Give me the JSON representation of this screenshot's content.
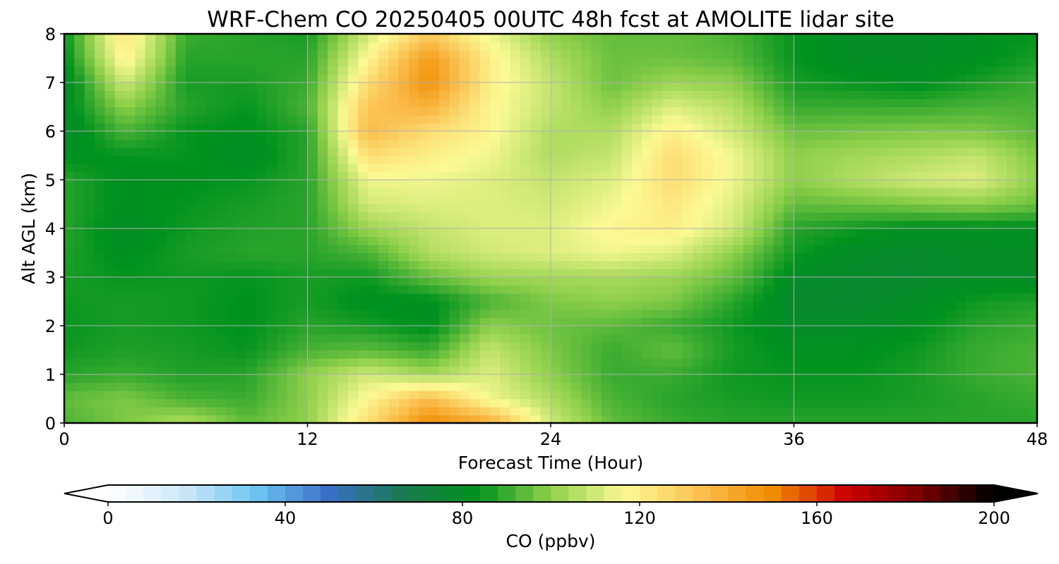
{
  "chart_data": {
    "type": "heatmap",
    "title": "WRF-Chem CO  20250405 00UTC 48h fcst at AMOLITE lidar site",
    "xlabel": "Forecast Time (Hour)",
    "ylabel": "Alt AGL (km)",
    "xlim": [
      0,
      48
    ],
    "ylim": [
      0,
      8
    ],
    "x_ticks": [
      "0",
      "12",
      "24",
      "36",
      "48"
    ],
    "y_ticks": [
      "0",
      "1",
      "2",
      "3",
      "4",
      "5",
      "6",
      "7",
      "8"
    ],
    "grid": true,
    "colorbar": {
      "label": "CO  (ppbv)",
      "range": [
        0,
        200
      ],
      "ticks": [
        "0",
        "40",
        "80",
        "120",
        "160",
        "200"
      ],
      "extend": "both",
      "colors": [
        "#ffffff",
        "#cfe8f8",
        "#6ec5f0",
        "#3a6fc8",
        "#1a7a50",
        "#00921e",
        "#8fd04a",
        "#fcfa94",
        "#fbc050",
        "#f08c00",
        "#cc0000",
        "#7a0000",
        "#000000"
      ]
    },
    "x": [
      0,
      3,
      6,
      9,
      12,
      15,
      18,
      21,
      24,
      27,
      30,
      33,
      36,
      39,
      42,
      45,
      48
    ],
    "y": [
      0,
      0.5,
      1,
      1.5,
      2,
      2.5,
      3,
      3.5,
      4,
      4.5,
      5,
      5.5,
      6,
      6.5,
      7,
      7.5,
      8
    ],
    "values": [
      [
        92,
        98,
        105,
        95,
        100,
        125,
        150,
        140,
        110,
        95,
        90,
        88,
        88,
        88,
        88,
        88,
        88
      ],
      [
        95,
        98,
        92,
        90,
        100,
        118,
        135,
        115,
        105,
        92,
        88,
        86,
        85,
        85,
        86,
        88,
        90
      ],
      [
        88,
        90,
        87,
        88,
        100,
        110,
        103,
        112,
        100,
        90,
        90,
        85,
        84,
        84,
        86,
        90,
        92
      ],
      [
        85,
        87,
        86,
        84,
        92,
        94,
        90,
        108,
        98,
        90,
        95,
        86,
        82,
        82,
        85,
        90,
        92
      ],
      [
        84,
        86,
        85,
        83,
        88,
        86,
        82,
        100,
        96,
        94,
        90,
        85,
        80,
        80,
        82,
        88,
        90
      ],
      [
        85,
        86,
        85,
        83,
        86,
        82,
        82,
        92,
        98,
        100,
        98,
        88,
        78,
        78,
        80,
        85,
        87
      ],
      [
        86,
        84,
        85,
        84,
        86,
        85,
        95,
        102,
        103,
        104,
        102,
        95,
        80,
        78,
        78,
        80,
        80
      ],
      [
        87,
        82,
        86,
        88,
        88,
        92,
        105,
        110,
        112,
        115,
        112,
        100,
        85,
        80,
        78,
        80,
        80
      ],
      [
        88,
        80,
        85,
        87,
        88,
        102,
        108,
        112,
        112,
        118,
        120,
        110,
        88,
        85,
        82,
        82,
        82
      ],
      [
        88,
        82,
        84,
        86,
        88,
        110,
        112,
        112,
        110,
        115,
        122,
        112,
        95,
        96,
        98,
        100,
        96
      ],
      [
        88,
        82,
        83,
        84,
        88,
        115,
        115,
        112,
        108,
        112,
        125,
        115,
        100,
        105,
        110,
        112,
        100
      ],
      [
        82,
        84,
        84,
        80,
        88,
        125,
        120,
        115,
        105,
        108,
        125,
        115,
        100,
        103,
        105,
        108,
        98
      ],
      [
        78,
        92,
        84,
        82,
        88,
        135,
        125,
        118,
        105,
        105,
        120,
        110,
        96,
        97,
        98,
        98,
        94
      ],
      [
        80,
        100,
        88,
        84,
        92,
        132,
        138,
        118,
        108,
        100,
        112,
        106,
        90,
        90,
        90,
        92,
        92
      ],
      [
        78,
        110,
        86,
        86,
        90,
        125,
        148,
        120,
        108,
        96,
        102,
        100,
        86,
        84,
        82,
        86,
        90
      ],
      [
        82,
        120,
        88,
        88,
        88,
        118,
        145,
        120,
        105,
        96,
        96,
        94,
        84,
        80,
        80,
        82,
        86
      ],
      [
        84,
        124,
        90,
        88,
        86,
        110,
        130,
        115,
        100,
        95,
        95,
        92,
        84,
        80,
        80,
        82,
        84
      ]
    ]
  }
}
